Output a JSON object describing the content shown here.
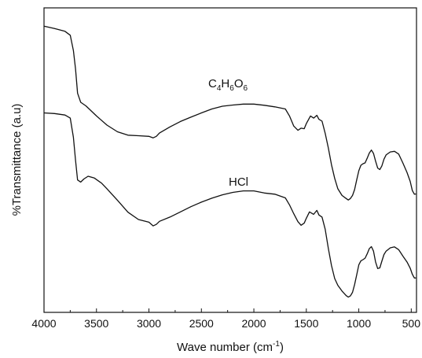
{
  "chart_data": {
    "type": "line",
    "title": "",
    "xlabel_main": "Wave number (cm",
    "xlabel_sup": "-1",
    "xlabel_close": ")",
    "ylabel": "%Transmittance (a.u)",
    "xlim": [
      4000,
      450
    ],
    "x_reversed": true,
    "xticks": [
      4000,
      3500,
      3000,
      2500,
      2000,
      1500,
      1000,
      500
    ],
    "yticks_labeled": false,
    "grid": false,
    "legend": "none",
    "ylim": [
      0,
      100
    ],
    "series": [
      {
        "annotation": {
          "base1": "C",
          "sub1": "4",
          "base2": "H",
          "sub2": "6",
          "base3": "O",
          "sub3": "6"
        },
        "color": "#111111",
        "points": [
          [
            4000,
            94.0
          ],
          [
            3900,
            93.2
          ],
          [
            3800,
            92.3
          ],
          [
            3750,
            91.0
          ],
          [
            3720,
            86.0
          ],
          [
            3700,
            80.0
          ],
          [
            3680,
            72.0
          ],
          [
            3650,
            69.0
          ],
          [
            3600,
            67.8
          ],
          [
            3500,
            64.5
          ],
          [
            3400,
            61.5
          ],
          [
            3300,
            59.3
          ],
          [
            3200,
            58.2
          ],
          [
            3100,
            58.0
          ],
          [
            3000,
            57.8
          ],
          [
            2960,
            57.3
          ],
          [
            2930,
            57.8
          ],
          [
            2900,
            58.9
          ],
          [
            2800,
            60.9
          ],
          [
            2700,
            62.7
          ],
          [
            2600,
            64.1
          ],
          [
            2500,
            65.5
          ],
          [
            2400,
            66.8
          ],
          [
            2300,
            67.7
          ],
          [
            2200,
            68.1
          ],
          [
            2100,
            68.4
          ],
          [
            2000,
            68.4
          ],
          [
            1900,
            68.0
          ],
          [
            1800,
            67.5
          ],
          [
            1700,
            66.8
          ],
          [
            1660,
            64.5
          ],
          [
            1620,
            61.2
          ],
          [
            1580,
            59.8
          ],
          [
            1550,
            60.5
          ],
          [
            1520,
            60.3
          ],
          [
            1500,
            62.0
          ],
          [
            1460,
            64.5
          ],
          [
            1430,
            63.8
          ],
          [
            1400,
            64.7
          ],
          [
            1380,
            63.4
          ],
          [
            1350,
            62.8
          ],
          [
            1320,
            58.8
          ],
          [
            1290,
            54.0
          ],
          [
            1260,
            48.5
          ],
          [
            1230,
            44.0
          ],
          [
            1200,
            40.6
          ],
          [
            1160,
            38.4
          ],
          [
            1120,
            37.4
          ],
          [
            1100,
            36.9
          ],
          [
            1080,
            37.4
          ],
          [
            1060,
            38.4
          ],
          [
            1040,
            40.3
          ],
          [
            1020,
            43.5
          ],
          [
            1000,
            46.5
          ],
          [
            980,
            48.3
          ],
          [
            960,
            48.8
          ],
          [
            940,
            49.1
          ],
          [
            920,
            50.6
          ],
          [
            900,
            52.3
          ],
          [
            880,
            53.3
          ],
          [
            860,
            52.2
          ],
          [
            840,
            49.7
          ],
          [
            820,
            47.4
          ],
          [
            800,
            46.9
          ],
          [
            780,
            48.1
          ],
          [
            760,
            50.3
          ],
          [
            740,
            51.7
          ],
          [
            700,
            52.7
          ],
          [
            660,
            52.9
          ],
          [
            620,
            52.0
          ],
          [
            580,
            49.1
          ],
          [
            540,
            45.9
          ],
          [
            510,
            43.0
          ],
          [
            490,
            40.0
          ],
          [
            470,
            38.8
          ],
          [
            455,
            38.9
          ]
        ]
      },
      {
        "annotation": {
          "text": "HCl"
        },
        "color": "#111111",
        "points": [
          [
            4000,
            65.5
          ],
          [
            3900,
            65.3
          ],
          [
            3800,
            64.8
          ],
          [
            3750,
            63.8
          ],
          [
            3720,
            57.5
          ],
          [
            3700,
            50.0
          ],
          [
            3680,
            43.5
          ],
          [
            3650,
            42.8
          ],
          [
            3620,
            43.8
          ],
          [
            3580,
            44.7
          ],
          [
            3520,
            44.1
          ],
          [
            3450,
            42.4
          ],
          [
            3400,
            40.6
          ],
          [
            3300,
            36.8
          ],
          [
            3200,
            32.9
          ],
          [
            3100,
            30.5
          ],
          [
            3000,
            29.6
          ],
          [
            2960,
            28.4
          ],
          [
            2930,
            28.9
          ],
          [
            2900,
            29.9
          ],
          [
            2800,
            31.3
          ],
          [
            2700,
            33.0
          ],
          [
            2600,
            34.7
          ],
          [
            2500,
            36.2
          ],
          [
            2400,
            37.5
          ],
          [
            2300,
            38.6
          ],
          [
            2200,
            39.4
          ],
          [
            2100,
            39.9
          ],
          [
            2000,
            39.9
          ],
          [
            1900,
            39.2
          ],
          [
            1800,
            38.8
          ],
          [
            1700,
            37.6
          ],
          [
            1660,
            35.3
          ],
          [
            1620,
            32.4
          ],
          [
            1580,
            29.8
          ],
          [
            1550,
            28.6
          ],
          [
            1520,
            29.3
          ],
          [
            1500,
            30.9
          ],
          [
            1470,
            33.0
          ],
          [
            1430,
            32.2
          ],
          [
            1400,
            33.5
          ],
          [
            1380,
            32.0
          ],
          [
            1350,
            31.3
          ],
          [
            1320,
            27.3
          ],
          [
            1290,
            21.0
          ],
          [
            1260,
            15.4
          ],
          [
            1230,
            11.1
          ],
          [
            1200,
            8.9
          ],
          [
            1160,
            7.0
          ],
          [
            1120,
            5.5
          ],
          [
            1100,
            5.0
          ],
          [
            1080,
            5.4
          ],
          [
            1060,
            6.6
          ],
          [
            1040,
            9.1
          ],
          [
            1020,
            12.3
          ],
          [
            1000,
            15.6
          ],
          [
            980,
            16.9
          ],
          [
            960,
            17.3
          ],
          [
            940,
            17.8
          ],
          [
            920,
            19.2
          ],
          [
            900,
            20.9
          ],
          [
            880,
            21.6
          ],
          [
            860,
            20.1
          ],
          [
            840,
            16.6
          ],
          [
            820,
            14.4
          ],
          [
            800,
            14.6
          ],
          [
            780,
            16.8
          ],
          [
            760,
            19.0
          ],
          [
            740,
            20.1
          ],
          [
            700,
            21.2
          ],
          [
            660,
            21.5
          ],
          [
            620,
            20.6
          ],
          [
            580,
            18.5
          ],
          [
            540,
            16.5
          ],
          [
            510,
            14.5
          ],
          [
            490,
            12.5
          ],
          [
            470,
            11.3
          ],
          [
            455,
            11.3
          ]
        ]
      }
    ]
  }
}
